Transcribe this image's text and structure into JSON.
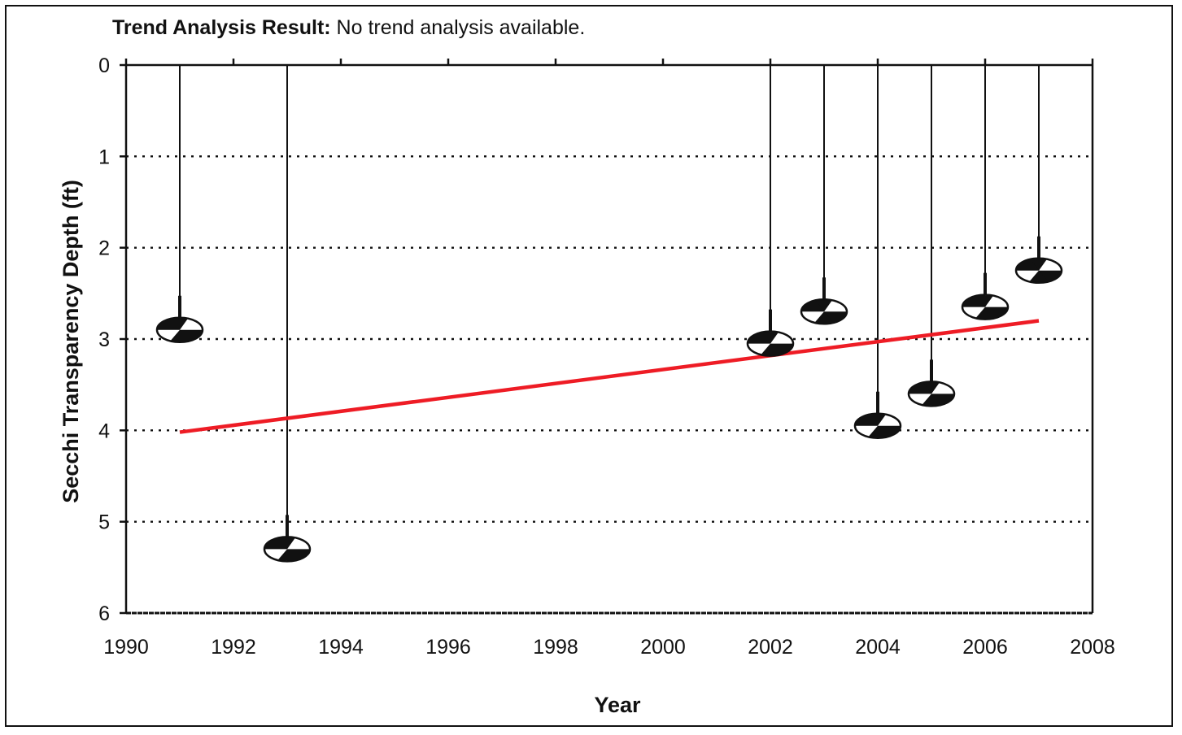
{
  "header": {
    "trend_label": "Trend Analysis Result:",
    "trend_value": "No trend analysis available."
  },
  "colors": {
    "trend_line": "#ee1c25",
    "axis": "#111111",
    "disk_dark": "#111111",
    "disk_light": "#ffffff"
  },
  "chart_data": {
    "type": "scatter",
    "title": "",
    "xlabel": "Year",
    "ylabel": "Secchi Transparency Depth (ft)",
    "xlim": [
      1990,
      2008
    ],
    "ylim": [
      0,
      6
    ],
    "y_inverted": true,
    "x_ticks": [
      "1990",
      "1992",
      "1994",
      "1996",
      "1998",
      "2000",
      "2002",
      "2004",
      "2006",
      "2008"
    ],
    "y_ticks": [
      "0",
      "1",
      "2",
      "3",
      "4",
      "5",
      "6"
    ],
    "grid": "horizontal dotted",
    "marker": "secchi-disk",
    "points": [
      {
        "x": 1991,
        "y": 2.9
      },
      {
        "x": 1993,
        "y": 5.3
      },
      {
        "x": 2002,
        "y": 3.05
      },
      {
        "x": 2003,
        "y": 2.7
      },
      {
        "x": 2004,
        "y": 3.95
      },
      {
        "x": 2005,
        "y": 3.6
      },
      {
        "x": 2006,
        "y": 2.65
      },
      {
        "x": 2007,
        "y": 2.25
      }
    ],
    "trend_line": {
      "x": [
        1991,
        2007
      ],
      "y": [
        4.02,
        2.8
      ]
    }
  }
}
